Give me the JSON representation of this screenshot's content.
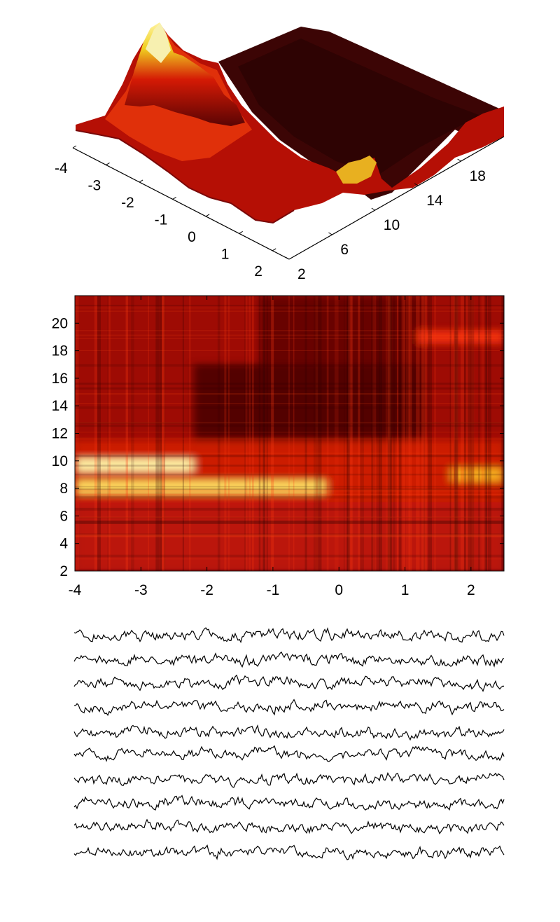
{
  "chart_data": [
    {
      "type": "surface",
      "xlabel": "",
      "ylabel": "",
      "x_ticks": [
        "-4",
        "-3",
        "-2",
        "-1",
        "0",
        "1",
        "2"
      ],
      "y_ticks": [
        "2",
        "6",
        "10",
        "14",
        "18"
      ],
      "xlim": [
        -4,
        2.5
      ],
      "ylim": [
        2,
        22
      ],
      "colormap": "hot",
      "peak_regions": [
        {
          "x_range": [
            -4,
            -0.8
          ],
          "y_range": [
            7,
            11
          ],
          "level": "high"
        },
        {
          "x_range": [
            1.6,
            2.5
          ],
          "y_range": [
            7,
            11
          ],
          "level": "medium"
        }
      ]
    },
    {
      "type": "heatmap",
      "xlabel": "",
      "ylabel": "",
      "x_ticks": [
        "-4",
        "-3",
        "-2",
        "-1",
        "0",
        "1",
        "2"
      ],
      "y_ticks": [
        "2",
        "4",
        "6",
        "8",
        "10",
        "12",
        "14",
        "16",
        "18",
        "20"
      ],
      "xlim": [
        -4,
        2.5
      ],
      "ylim": [
        2,
        22
      ],
      "colormap": "hot",
      "bands": [
        {
          "y": 9.7,
          "x_range": [
            -4,
            -2.2
          ],
          "intensity": 0.95
        },
        {
          "y": 8.1,
          "x_range": [
            -4,
            -0.2
          ],
          "intensity": 0.85
        },
        {
          "y": 9.0,
          "x_range": [
            1.7,
            2.5
          ],
          "intensity": 0.75
        },
        {
          "y": 19.0,
          "x_range": [
            1.2,
            2.5
          ],
          "intensity": 0.5
        }
      ]
    },
    {
      "type": "line",
      "xlabel": "",
      "ylabel": "",
      "n_traces": 10,
      "line_color": "#000000"
    }
  ]
}
